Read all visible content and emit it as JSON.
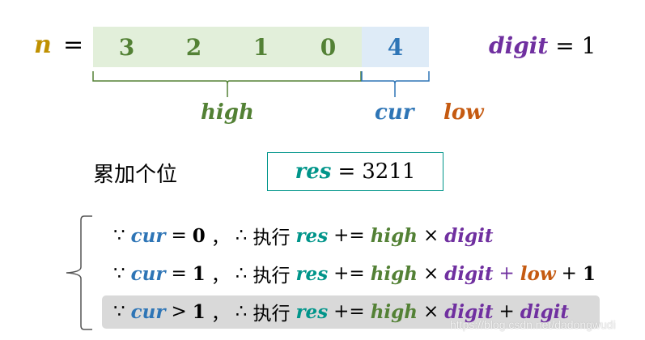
{
  "colors": {
    "n": "#bf9000",
    "high": "#538135",
    "cur": "#2e75b6",
    "low": "#c55a11",
    "digit": "#7030a0",
    "res": "#00958a",
    "high_bg": "#e2efda",
    "cur_bg": "#deebf7"
  },
  "n_label": "n",
  "eq": "=",
  "digits_high": [
    "3",
    "2",
    "1",
    "0"
  ],
  "digit_cur": "4",
  "digit_var": {
    "name": "digit",
    "eq": "=",
    "value": "1"
  },
  "labels": {
    "high": "high",
    "cur": "cur",
    "low": "low"
  },
  "step_label": "累加个位",
  "res_box": {
    "name": "res",
    "eq": "=",
    "value": "3211"
  },
  "rows": [
    {
      "because": "∵",
      "cur": "cur",
      "rel": "=",
      "val": "0",
      "comma": "，",
      "therefore": "∴",
      "exec": "执行",
      "res": "res",
      "op": "+=",
      "high": "high",
      "times": "×",
      "digit": "digit"
    },
    {
      "because": "∵",
      "cur": "cur",
      "rel": "=",
      "val": "1",
      "comma": "，",
      "therefore": "∴",
      "exec": "执行",
      "res": "res",
      "op": "+=",
      "high": "high",
      "times": "×",
      "digit": "digit",
      "plus1": "+",
      "low": "low",
      "plus2": "+",
      "one": "1"
    },
    {
      "because": "∵",
      "cur": "cur",
      "rel": ">",
      "val": "1",
      "comma": "，",
      "therefore": "∴",
      "exec": "执行",
      "res": "res",
      "op": "+=",
      "high": "high",
      "times": "×",
      "digit": "digit",
      "plus1": "+",
      "digit2": "digit",
      "highlighted": true
    }
  ],
  "watermark": "https://blog.csdn.net/dadongwudi"
}
